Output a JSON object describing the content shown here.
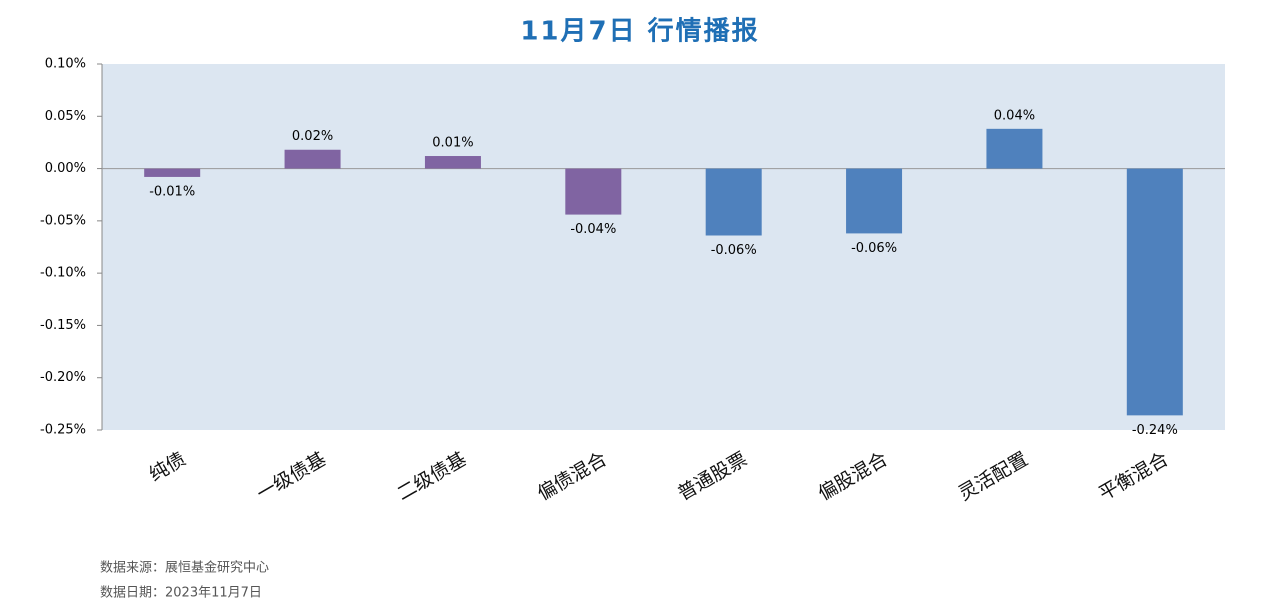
{
  "chart_data": {
    "type": "bar",
    "title": "11月7日  行情播报",
    "categories": [
      "纯债",
      "一级债基",
      "二级债基",
      "偏债混合",
      "普通股票",
      "偏股混合",
      "灵活配置",
      "平衡混合"
    ],
    "values": [
      -0.008,
      0.018,
      0.012,
      -0.044,
      -0.064,
      -0.062,
      0.038,
      -0.236
    ],
    "value_labels": [
      "-0.01%",
      "0.02%",
      "0.01%",
      "-0.04%",
      "-0.06%",
      "-0.06%",
      "0.04%",
      "-0.24%"
    ],
    "colors": [
      "#8064a2",
      "#8064a2",
      "#8064a2",
      "#8064a2",
      "#4f81bd",
      "#4f81bd",
      "#4f81bd",
      "#4f81bd"
    ],
    "ylim": [
      -0.25,
      0.1
    ],
    "yticks": [
      {
        "value": -0.25,
        "label": "-0.25%"
      },
      {
        "value": -0.2,
        "label": "-0.20%"
      },
      {
        "value": -0.15,
        "label": "-0.15%"
      },
      {
        "value": -0.1,
        "label": "-0.10%"
      },
      {
        "value": -0.05,
        "label": "-0.05%"
      },
      {
        "value": 0,
        "label": "0.00%"
      },
      {
        "value": 0.05,
        "label": "0.05%"
      },
      {
        "value": 0.1,
        "label": "0.10%"
      }
    ],
    "source": "数据来源：展恒基金研究中心",
    "date": "数据日期：2023年11月7日"
  }
}
